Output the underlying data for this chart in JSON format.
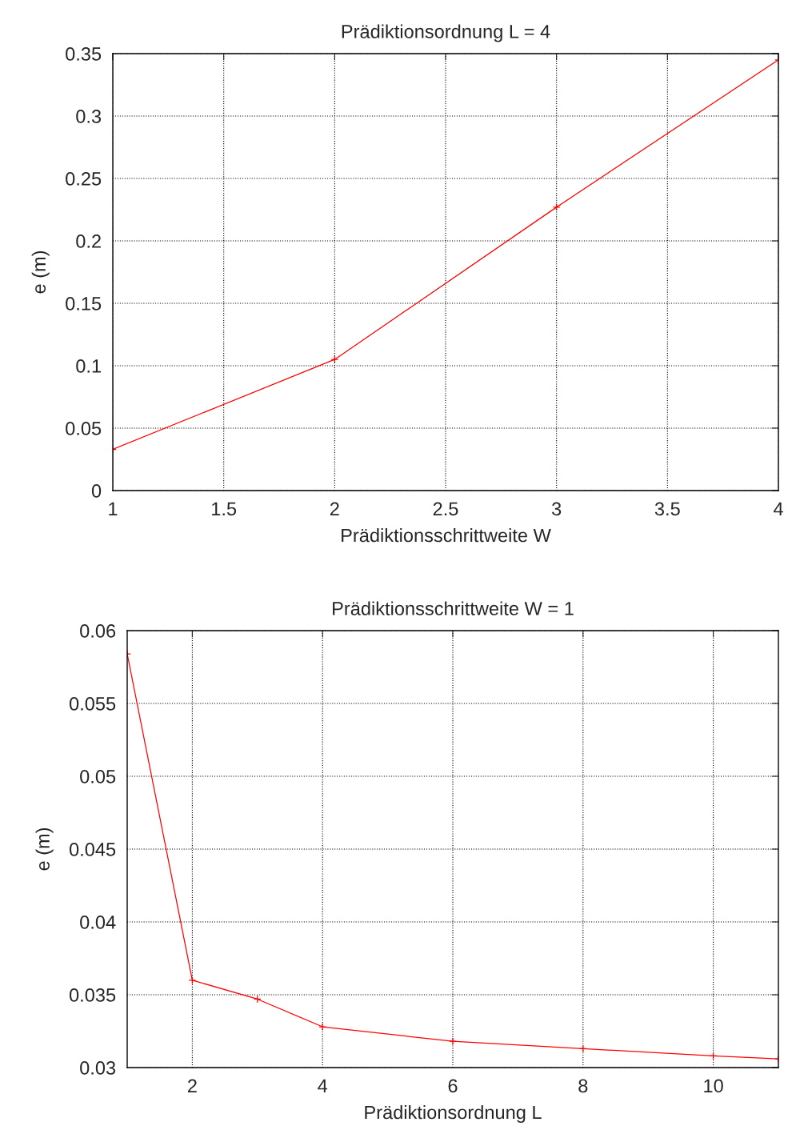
{
  "chart_data": [
    {
      "type": "line",
      "title": "Prädiktionsordnung L = 4",
      "xlabel": "Prädiktionsschrittweite W",
      "ylabel": "e (m)",
      "x": [
        1,
        2,
        3,
        4
      ],
      "series": [
        {
          "color": "#ff0000",
          "values": [
            0.033,
            0.105,
            0.227,
            0.345
          ]
        }
      ],
      "xlim": [
        1,
        4
      ],
      "xticks": [
        1,
        1.5,
        2,
        2.5,
        3,
        3.5,
        4
      ],
      "ylim": [
        0,
        0.35
      ],
      "yticks": [
        0,
        0.05,
        0.1,
        0.15,
        0.2,
        0.25,
        0.3,
        0.35
      ],
      "grid": true,
      "marker": "cross",
      "line_style": "solid"
    },
    {
      "type": "line",
      "title": "Prädiktionsschrittweite W = 1",
      "xlabel": "Prädiktionsordnung L",
      "ylabel": "e (m)",
      "x": [
        1,
        2,
        3,
        4,
        6,
        8,
        10,
        11
      ],
      "series": [
        {
          "color": "#ff0000",
          "values": [
            0.0584,
            0.036,
            0.0347,
            0.0328,
            0.0318,
            0.0313,
            0.0308,
            0.0306
          ]
        }
      ],
      "xlim": [
        1,
        11
      ],
      "xticks": [
        2,
        4,
        6,
        8,
        10
      ],
      "ylim": [
        0.03,
        0.06
      ],
      "yticks": [
        0.03,
        0.035,
        0.04,
        0.045,
        0.05,
        0.055,
        0.06
      ],
      "grid": true,
      "marker": "cross",
      "line_style": "solid"
    }
  ]
}
